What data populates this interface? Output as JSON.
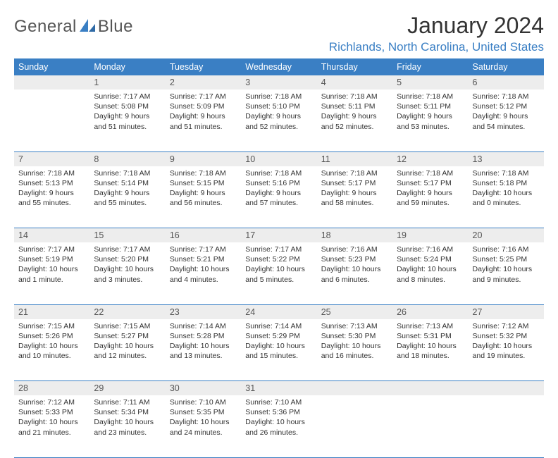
{
  "brand": {
    "word1": "General",
    "word2": "Blue"
  },
  "title": "January 2024",
  "location": "Richlands, North Carolina, United States",
  "colors": {
    "accent": "#3a7fc4",
    "header_bg": "#3a7fc4",
    "daynum_bg": "#ededed",
    "text": "#333333",
    "brand_gray": "#555555"
  },
  "dayHeaders": [
    "Sunday",
    "Monday",
    "Tuesday",
    "Wednesday",
    "Thursday",
    "Friday",
    "Saturday"
  ],
  "weeks": [
    [
      null,
      {
        "n": "1",
        "sr": "7:17 AM",
        "ss": "5:08 PM",
        "dl": "9 hours and 51 minutes."
      },
      {
        "n": "2",
        "sr": "7:17 AM",
        "ss": "5:09 PM",
        "dl": "9 hours and 51 minutes."
      },
      {
        "n": "3",
        "sr": "7:18 AM",
        "ss": "5:10 PM",
        "dl": "9 hours and 52 minutes."
      },
      {
        "n": "4",
        "sr": "7:18 AM",
        "ss": "5:11 PM",
        "dl": "9 hours and 52 minutes."
      },
      {
        "n": "5",
        "sr": "7:18 AM",
        "ss": "5:11 PM",
        "dl": "9 hours and 53 minutes."
      },
      {
        "n": "6",
        "sr": "7:18 AM",
        "ss": "5:12 PM",
        "dl": "9 hours and 54 minutes."
      }
    ],
    [
      {
        "n": "7",
        "sr": "7:18 AM",
        "ss": "5:13 PM",
        "dl": "9 hours and 55 minutes."
      },
      {
        "n": "8",
        "sr": "7:18 AM",
        "ss": "5:14 PM",
        "dl": "9 hours and 55 minutes."
      },
      {
        "n": "9",
        "sr": "7:18 AM",
        "ss": "5:15 PM",
        "dl": "9 hours and 56 minutes."
      },
      {
        "n": "10",
        "sr": "7:18 AM",
        "ss": "5:16 PM",
        "dl": "9 hours and 57 minutes."
      },
      {
        "n": "11",
        "sr": "7:18 AM",
        "ss": "5:17 PM",
        "dl": "9 hours and 58 minutes."
      },
      {
        "n": "12",
        "sr": "7:18 AM",
        "ss": "5:17 PM",
        "dl": "9 hours and 59 minutes."
      },
      {
        "n": "13",
        "sr": "7:18 AM",
        "ss": "5:18 PM",
        "dl": "10 hours and 0 minutes."
      }
    ],
    [
      {
        "n": "14",
        "sr": "7:17 AM",
        "ss": "5:19 PM",
        "dl": "10 hours and 1 minute."
      },
      {
        "n": "15",
        "sr": "7:17 AM",
        "ss": "5:20 PM",
        "dl": "10 hours and 3 minutes."
      },
      {
        "n": "16",
        "sr": "7:17 AM",
        "ss": "5:21 PM",
        "dl": "10 hours and 4 minutes."
      },
      {
        "n": "17",
        "sr": "7:17 AM",
        "ss": "5:22 PM",
        "dl": "10 hours and 5 minutes."
      },
      {
        "n": "18",
        "sr": "7:16 AM",
        "ss": "5:23 PM",
        "dl": "10 hours and 6 minutes."
      },
      {
        "n": "19",
        "sr": "7:16 AM",
        "ss": "5:24 PM",
        "dl": "10 hours and 8 minutes."
      },
      {
        "n": "20",
        "sr": "7:16 AM",
        "ss": "5:25 PM",
        "dl": "10 hours and 9 minutes."
      }
    ],
    [
      {
        "n": "21",
        "sr": "7:15 AM",
        "ss": "5:26 PM",
        "dl": "10 hours and 10 minutes."
      },
      {
        "n": "22",
        "sr": "7:15 AM",
        "ss": "5:27 PM",
        "dl": "10 hours and 12 minutes."
      },
      {
        "n": "23",
        "sr": "7:14 AM",
        "ss": "5:28 PM",
        "dl": "10 hours and 13 minutes."
      },
      {
        "n": "24",
        "sr": "7:14 AM",
        "ss": "5:29 PM",
        "dl": "10 hours and 15 minutes."
      },
      {
        "n": "25",
        "sr": "7:13 AM",
        "ss": "5:30 PM",
        "dl": "10 hours and 16 minutes."
      },
      {
        "n": "26",
        "sr": "7:13 AM",
        "ss": "5:31 PM",
        "dl": "10 hours and 18 minutes."
      },
      {
        "n": "27",
        "sr": "7:12 AM",
        "ss": "5:32 PM",
        "dl": "10 hours and 19 minutes."
      }
    ],
    [
      {
        "n": "28",
        "sr": "7:12 AM",
        "ss": "5:33 PM",
        "dl": "10 hours and 21 minutes."
      },
      {
        "n": "29",
        "sr": "7:11 AM",
        "ss": "5:34 PM",
        "dl": "10 hours and 23 minutes."
      },
      {
        "n": "30",
        "sr": "7:10 AM",
        "ss": "5:35 PM",
        "dl": "10 hours and 24 minutes."
      },
      {
        "n": "31",
        "sr": "7:10 AM",
        "ss": "5:36 PM",
        "dl": "10 hours and 26 minutes."
      },
      null,
      null,
      null
    ]
  ],
  "labels": {
    "sunrise": "Sunrise: ",
    "sunset": "Sunset: ",
    "daylight": "Daylight: "
  }
}
